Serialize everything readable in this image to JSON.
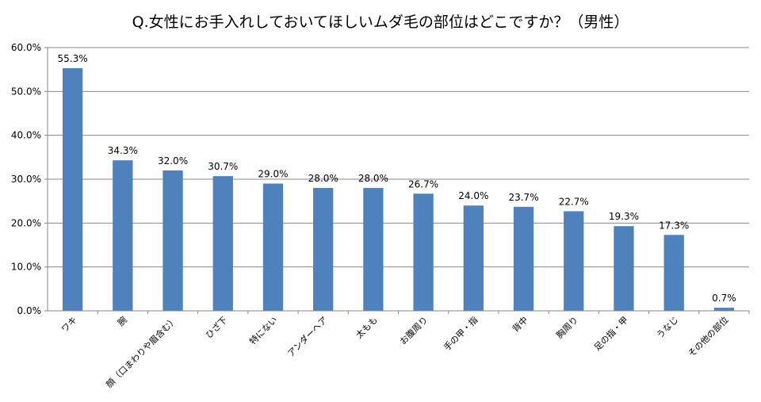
{
  "chart_data": {
    "type": "bar",
    "title": "Q.女性にお手入れしておいてほしいムダ毛の部位はどこですか？（男性）",
    "categories": [
      "ワキ",
      "腕",
      "顔（口まわりや眉含む）",
      "ひざ下",
      "特にない",
      "アンダーヘア",
      "太もも",
      "お腹周り",
      "手の甲・指",
      "背中",
      "胸周り",
      "足の指・甲",
      "うなじ",
      "その他の部位"
    ],
    "values": [
      55.3,
      34.3,
      32.0,
      30.7,
      29.0,
      28.0,
      28.0,
      26.7,
      24.0,
      23.7,
      22.7,
      19.3,
      17.3,
      0.7
    ],
    "data_labels": [
      "55.3%",
      "34.3%",
      "32.0%",
      "30.7%",
      "29.0%",
      "28.0%",
      "28.0%",
      "26.7%",
      "24.0%",
      "23.7%",
      "22.7%",
      "19.3%",
      "17.3%",
      "0.7%"
    ],
    "y_ticks": [
      "0.0%",
      "10.0%",
      "20.0%",
      "30.0%",
      "40.0%",
      "50.0%",
      "60.0%"
    ],
    "ylim": [
      0,
      60
    ],
    "xlabel": "",
    "ylabel": "",
    "grid": true,
    "legend": "none",
    "colors": {
      "bar": "#4F81BD",
      "grid": "#898989",
      "axis": "#868686",
      "text": "#000000"
    }
  }
}
